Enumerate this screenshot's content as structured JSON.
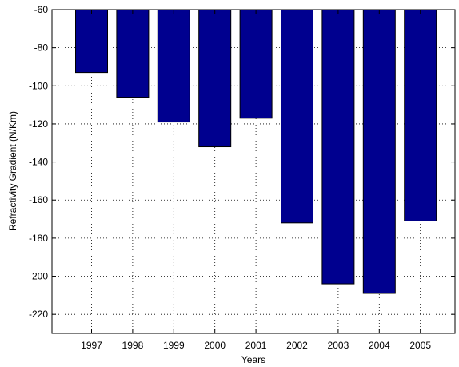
{
  "chart_data": {
    "type": "bar",
    "categories": [
      "1997",
      "1998",
      "1999",
      "2000",
      "2001",
      "2002",
      "2003",
      "2004",
      "2005"
    ],
    "values": [
      -93,
      -106,
      -119,
      -132,
      -117,
      -172,
      -204,
      -209,
      -171
    ],
    "baseline": -60,
    "xlabel": "Years",
    "ylabel": "Refractivity Gradient (N/Km)",
    "ylim": [
      -230,
      -60
    ],
    "yticks": [
      -60,
      -80,
      -100,
      -120,
      -140,
      -160,
      -180,
      -200,
      -220
    ],
    "ytick_labels": [
      "-60",
      "-80",
      "-100",
      "-120",
      "-140",
      "-160",
      "-180",
      "-200",
      "-220"
    ],
    "grid": true,
    "bar_color": "#00008f"
  }
}
